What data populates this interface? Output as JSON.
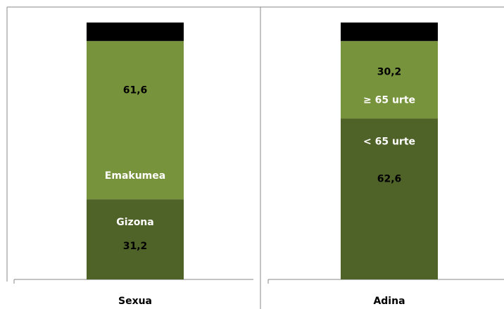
{
  "chart_data": [
    {
      "type": "bar",
      "stacked": true,
      "categories": [
        "Sexua"
      ],
      "ylim": [
        0,
        100
      ],
      "series": [
        {
          "name": "Gizona",
          "color": "#4f6228",
          "values": [
            31.2
          ],
          "value_labels": [
            "31,2"
          ]
        },
        {
          "name": "Emakumea",
          "color": "#77933c",
          "values": [
            61.6
          ],
          "value_labels": [
            "61,6"
          ]
        },
        {
          "color": "#000000",
          "values": [
            7.2
          ]
        }
      ]
    },
    {
      "type": "bar",
      "stacked": true,
      "categories": [
        "Adina"
      ],
      "ylim": [
        0,
        100
      ],
      "series": [
        {
          "name": "< 65 urte",
          "color": "#4f6228",
          "values": [
            62.6
          ],
          "value_labels": [
            "62,6"
          ]
        },
        {
          "name": "≥ 65 urte",
          "color": "#77933c",
          "values": [
            30.2
          ],
          "value_labels": [
            "30,2"
          ]
        },
        {
          "color": "#000000",
          "values": [
            7.2
          ]
        }
      ]
    }
  ]
}
